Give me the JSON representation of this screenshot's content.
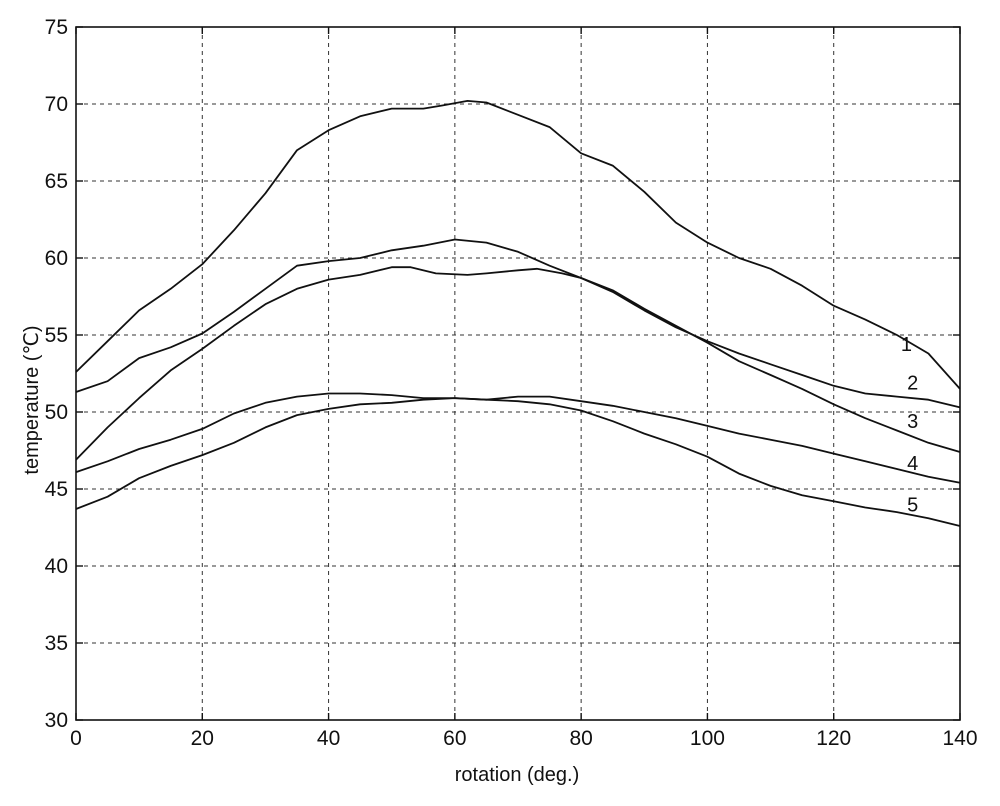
{
  "chart_data": {
    "type": "line",
    "title": "",
    "xlabel": "rotation (deg.)",
    "ylabel": "temperature (℃)",
    "xlim": [
      0,
      140
    ],
    "ylim": [
      30,
      75
    ],
    "xticks": [
      0,
      20,
      40,
      60,
      80,
      100,
      120,
      140
    ],
    "yticks": [
      30,
      35,
      40,
      45,
      50,
      55,
      60,
      65,
      70,
      75
    ],
    "grid": true,
    "line_color": "#111111",
    "series": [
      {
        "name": "1",
        "x": [
          0,
          5,
          10,
          15,
          20,
          25,
          30,
          35,
          40,
          45,
          50,
          55,
          58,
          62,
          65,
          70,
          75,
          80,
          85,
          90,
          95,
          100,
          105,
          110,
          115,
          120,
          125,
          130,
          135,
          140
        ],
        "values": [
          52.6,
          54.6,
          56.6,
          58.0,
          59.6,
          61.8,
          64.2,
          67.0,
          68.3,
          69.2,
          69.7,
          69.7,
          69.9,
          70.2,
          70.1,
          69.3,
          68.5,
          66.8,
          66.0,
          64.3,
          62.3,
          61.0,
          60.0,
          59.3,
          58.2,
          56.9,
          56.0,
          55.0,
          53.8,
          51.5
        ]
      },
      {
        "name": "2",
        "x": [
          0,
          5,
          10,
          15,
          20,
          25,
          30,
          35,
          40,
          45,
          50,
          55,
          60,
          65,
          70,
          75,
          80,
          85,
          90,
          95,
          100,
          105,
          110,
          115,
          120,
          125,
          130,
          135,
          140
        ],
        "values": [
          51.3,
          52.0,
          53.5,
          54.2,
          55.1,
          56.5,
          58.0,
          59.5,
          59.8,
          60.0,
          60.5,
          60.8,
          61.2,
          61.0,
          60.4,
          59.5,
          58.7,
          57.8,
          56.6,
          55.5,
          54.6,
          53.8,
          53.1,
          52.4,
          51.7,
          51.2,
          51.0,
          50.8,
          50.3
        ]
      },
      {
        "name": "3",
        "x": [
          0,
          5,
          10,
          15,
          20,
          25,
          30,
          35,
          40,
          45,
          50,
          53,
          57,
          62,
          65,
          70,
          73,
          77,
          80,
          85,
          90,
          95,
          100,
          105,
          110,
          115,
          120,
          125,
          130,
          135,
          140
        ],
        "values": [
          46.9,
          49.0,
          50.9,
          52.7,
          54.1,
          55.6,
          57.0,
          58.0,
          58.6,
          58.9,
          59.4,
          59.4,
          59.0,
          58.9,
          59.0,
          59.2,
          59.3,
          59.0,
          58.7,
          57.9,
          56.7,
          55.6,
          54.5,
          53.3,
          52.4,
          51.5,
          50.5,
          49.6,
          48.8,
          48.0,
          47.4
        ]
      },
      {
        "name": "4",
        "x": [
          0,
          5,
          10,
          15,
          20,
          25,
          30,
          35,
          40,
          45,
          50,
          55,
          60,
          65,
          70,
          75,
          80,
          85,
          90,
          95,
          100,
          105,
          110,
          115,
          120,
          125,
          130,
          135,
          140
        ],
        "values": [
          46.1,
          46.8,
          47.6,
          48.2,
          48.9,
          49.9,
          50.6,
          51.0,
          51.2,
          51.2,
          51.1,
          50.9,
          50.9,
          50.8,
          51.0,
          51.0,
          50.7,
          50.4,
          50.0,
          49.6,
          49.1,
          48.6,
          48.2,
          47.8,
          47.3,
          46.8,
          46.3,
          45.8,
          45.4
        ]
      },
      {
        "name": "5",
        "x": [
          0,
          5,
          10,
          15,
          20,
          25,
          30,
          35,
          40,
          45,
          50,
          55,
          60,
          65,
          70,
          75,
          80,
          85,
          90,
          95,
          100,
          105,
          110,
          115,
          120,
          125,
          130,
          135,
          140
        ],
        "values": [
          43.7,
          44.5,
          45.7,
          46.5,
          47.2,
          48.0,
          49.0,
          49.8,
          50.2,
          50.5,
          50.6,
          50.8,
          50.9,
          50.8,
          50.7,
          50.5,
          50.1,
          49.4,
          48.6,
          47.9,
          47.1,
          46.0,
          45.2,
          44.6,
          44.2,
          43.8,
          43.5,
          43.1,
          42.6
        ]
      }
    ]
  }
}
